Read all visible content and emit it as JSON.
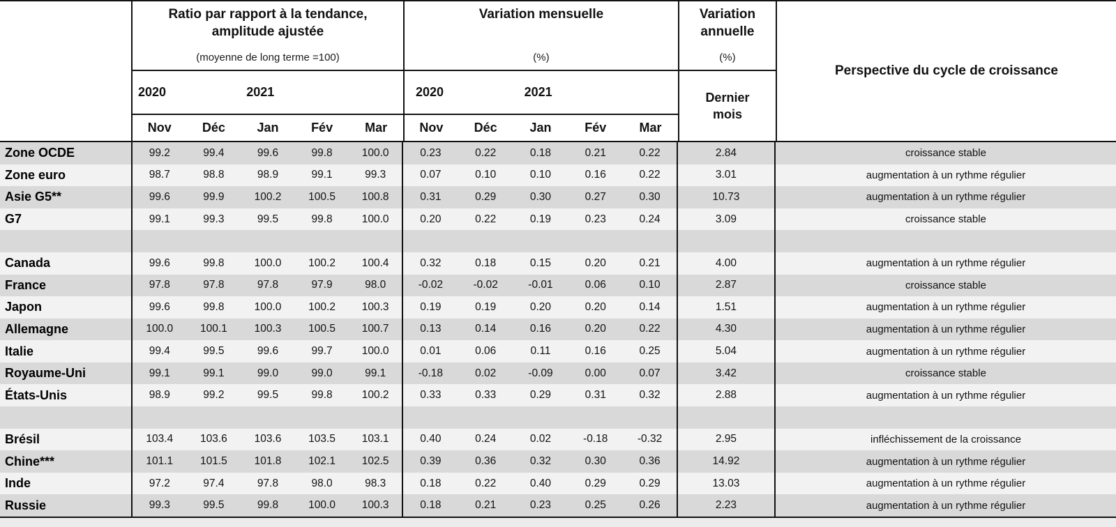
{
  "table": {
    "header": {
      "ratio_group": {
        "title": "Ratio par rapport à la tendance, amplitude ajustée",
        "subtitle": "(moyenne de long terme =100)",
        "years": [
          "2020",
          "2021"
        ],
        "months": [
          "Nov",
          "Déc",
          "Jan",
          "Fév",
          "Mar"
        ]
      },
      "monthly_group": {
        "title": "Variation mensuelle",
        "subtitle": "(%)",
        "years": [
          "2020",
          "2021"
        ],
        "months": [
          "Nov",
          "Déc",
          "Jan",
          "Fév",
          "Mar"
        ]
      },
      "annual_group": {
        "title": "Variation annuelle",
        "subtitle": "(%)",
        "cell_label": "Dernier mois"
      },
      "perspective_title": "Perspective du cycle de croissance"
    },
    "rows": [
      {
        "label": "Zone OCDE",
        "ratio": [
          "99.2",
          "99.4",
          "99.6",
          "99.8",
          "100.0"
        ],
        "monthly": [
          "0.23",
          "0.22",
          "0.18",
          "0.21",
          "0.22"
        ],
        "annual": "2.84",
        "perspective": "croissance stable"
      },
      {
        "label": "Zone euro",
        "ratio": [
          "98.7",
          "98.8",
          "98.9",
          "99.1",
          "99.3"
        ],
        "monthly": [
          "0.07",
          "0.10",
          "0.10",
          "0.16",
          "0.22"
        ],
        "annual": "3.01",
        "perspective": "augmentation à un rythme régulier"
      },
      {
        "label": "Asie G5**",
        "ratio": [
          "99.6",
          "99.9",
          "100.2",
          "100.5",
          "100.8"
        ],
        "monthly": [
          "0.31",
          "0.29",
          "0.30",
          "0.27",
          "0.30"
        ],
        "annual": "10.73",
        "perspective": "augmentation à un rythme régulier"
      },
      {
        "label": "G7",
        "ratio": [
          "99.1",
          "99.3",
          "99.5",
          "99.8",
          "100.0"
        ],
        "monthly": [
          "0.20",
          "0.22",
          "0.19",
          "0.23",
          "0.24"
        ],
        "annual": "3.09",
        "perspective": "croissance stable"
      },
      {
        "label": "",
        "ratio": [
          "",
          "",
          "",
          "",
          ""
        ],
        "monthly": [
          "",
          "",
          "",
          "",
          ""
        ],
        "annual": "",
        "perspective": ""
      },
      {
        "label": "Canada",
        "ratio": [
          "99.6",
          "99.8",
          "100.0",
          "100.2",
          "100.4"
        ],
        "monthly": [
          "0.32",
          "0.18",
          "0.15",
          "0.20",
          "0.21"
        ],
        "annual": "4.00",
        "perspective": "augmentation à un rythme régulier"
      },
      {
        "label": "France",
        "ratio": [
          "97.8",
          "97.8",
          "97.8",
          "97.9",
          "98.0"
        ],
        "monthly": [
          "-0.02",
          "-0.02",
          "-0.01",
          "0.06",
          "0.10"
        ],
        "annual": "2.87",
        "perspective": "croissance stable"
      },
      {
        "label": "Japon",
        "ratio": [
          "99.6",
          "99.8",
          "100.0",
          "100.2",
          "100.3"
        ],
        "monthly": [
          "0.19",
          "0.19",
          "0.20",
          "0.20",
          "0.14"
        ],
        "annual": "1.51",
        "perspective": "augmentation à un rythme régulier"
      },
      {
        "label": "Allemagne",
        "ratio": [
          "100.0",
          "100.1",
          "100.3",
          "100.5",
          "100.7"
        ],
        "monthly": [
          "0.13",
          "0.14",
          "0.16",
          "0.20",
          "0.22"
        ],
        "annual": "4.30",
        "perspective": "augmentation à un rythme régulier"
      },
      {
        "label": "Italie",
        "ratio": [
          "99.4",
          "99.5",
          "99.6",
          "99.7",
          "100.0"
        ],
        "monthly": [
          "0.01",
          "0.06",
          "0.11",
          "0.16",
          "0.25"
        ],
        "annual": "5.04",
        "perspective": "augmentation à un rythme régulier"
      },
      {
        "label": "Royaume-Uni",
        "ratio": [
          "99.1",
          "99.1",
          "99.0",
          "99.0",
          "99.1"
        ],
        "monthly": [
          "-0.18",
          "0.02",
          "-0.09",
          "0.00",
          "0.07"
        ],
        "annual": "3.42",
        "perspective": "croissance stable"
      },
      {
        "label": "États-Unis",
        "ratio": [
          "98.9",
          "99.2",
          "99.5",
          "99.8",
          "100.2"
        ],
        "monthly": [
          "0.33",
          "0.33",
          "0.29",
          "0.31",
          "0.32"
        ],
        "annual": "2.88",
        "perspective": "augmentation à un rythme régulier"
      },
      {
        "label": "",
        "ratio": [
          "",
          "",
          "",
          "",
          ""
        ],
        "monthly": [
          "",
          "",
          "",
          "",
          ""
        ],
        "annual": "",
        "perspective": ""
      },
      {
        "label": "Brésil",
        "ratio": [
          "103.4",
          "103.6",
          "103.6",
          "103.5",
          "103.1"
        ],
        "monthly": [
          "0.40",
          "0.24",
          "0.02",
          "-0.18",
          "-0.32"
        ],
        "annual": "2.95",
        "perspective": "infléchissement de la croissance"
      },
      {
        "label": "Chine***",
        "ratio": [
          "101.1",
          "101.5",
          "101.8",
          "102.1",
          "102.5"
        ],
        "monthly": [
          "0.39",
          "0.36",
          "0.32",
          "0.30",
          "0.36"
        ],
        "annual": "14.92",
        "perspective": "augmentation à un rythme régulier"
      },
      {
        "label": "Inde",
        "ratio": [
          "97.2",
          "97.4",
          "97.8",
          "98.0",
          "98.3"
        ],
        "monthly": [
          "0.18",
          "0.22",
          "0.40",
          "0.29",
          "0.29"
        ],
        "annual": "13.03",
        "perspective": "augmentation à un rythme régulier"
      },
      {
        "label": "Russie",
        "ratio": [
          "99.3",
          "99.5",
          "99.8",
          "100.0",
          "100.3"
        ],
        "monthly": [
          "0.18",
          "0.21",
          "0.23",
          "0.25",
          "0.26"
        ],
        "annual": "2.23",
        "perspective": "augmentation à un rythme régulier"
      }
    ]
  },
  "colors": {
    "stripe_dark": "#d9d9d9",
    "stripe_light": "#f2f2f2",
    "border": "#111111",
    "page_background": "#ececec"
  }
}
